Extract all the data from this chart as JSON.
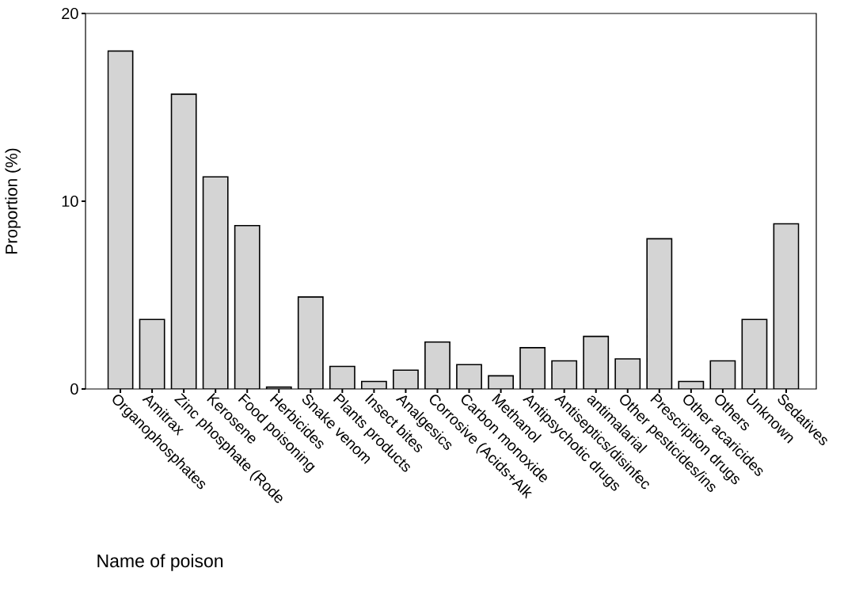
{
  "chart_data": {
    "type": "bar",
    "xlabel": "Name of poison",
    "ylabel": "Proportion (%)",
    "categories": [
      "Organophosphates",
      "Amitrax",
      "Zinc phosphate (Rode",
      "Kerosene",
      "Food poisoning",
      "Herbicides",
      "Snake venom",
      "Plants products",
      "Insect bites",
      "Analgesics",
      "Corrosive (Acids+Alk",
      "Carbon monoxide",
      "Methanol",
      "Antipsychotic drugs",
      "Antiseptics/disinfec",
      "antimalarial",
      "Other pesticides/ins",
      "Prescription drugs",
      "Other acaricides",
      "Others",
      "Unknown",
      "Sedatives"
    ],
    "values": [
      18.0,
      3.7,
      15.7,
      11.3,
      8.7,
      0.1,
      4.9,
      1.2,
      0.4,
      1.0,
      2.5,
      1.3,
      0.7,
      2.2,
      1.5,
      2.8,
      1.6,
      8.0,
      0.4,
      1.5,
      3.7,
      8.8
    ],
    "color": "#d4d4d4",
    "ylim": [
      0,
      20
    ],
    "yticks": [
      0,
      10,
      20
    ],
    "grid": false
  }
}
